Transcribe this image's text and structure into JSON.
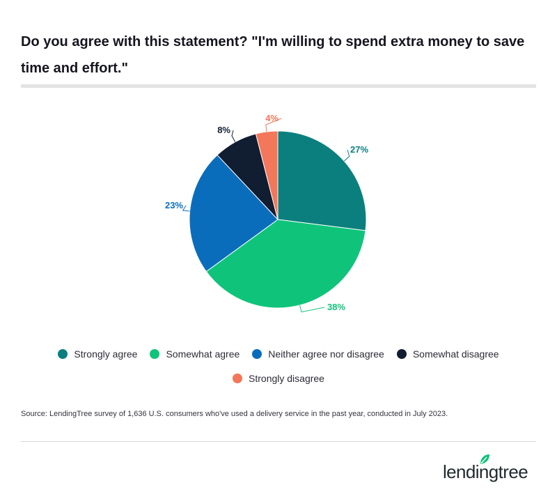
{
  "title": "Do you agree with this statement? \"I'm willing to spend extra money to save time and effort.\"",
  "chart_data": {
    "type": "pie",
    "slices": [
      {
        "label": "Strongly agree",
        "value": 27,
        "display": "27%",
        "color": "#0b7f7e"
      },
      {
        "label": "Somewhat agree",
        "value": 38,
        "display": "38%",
        "color": "#0fc47a"
      },
      {
        "label": "Neither agree nor disagree",
        "value": 23,
        "display": "23%",
        "color": "#0a6dbc"
      },
      {
        "label": "Somewhat disagree",
        "value": 8,
        "display": "8%",
        "color": "#111d30"
      },
      {
        "label": "Strongly disagree",
        "value": 4,
        "display": "4%",
        "color": "#f3775a"
      }
    ],
    "start_angle_deg": 0,
    "direction": "clockwise",
    "legend_position": "bottom"
  },
  "legend": {
    "row1": [
      {
        "label": "Strongly agree",
        "color": "#0b7f7e"
      },
      {
        "label": "Somewhat agree",
        "color": "#0fc47a"
      },
      {
        "label": "Neither agree nor disagree",
        "color": "#0a6dbc"
      },
      {
        "label": "Somewhat disagree",
        "color": "#111d30"
      }
    ],
    "row2": [
      {
        "label": "Strongly disagree",
        "color": "#f3775a"
      }
    ]
  },
  "source": "Source: LendingTree survey of 1,636 U.S. consumers who've used a delivery service in the past year, conducted in July 2023.",
  "logo": {
    "text": "lendingtree",
    "icon": "leaf-icon",
    "color": "#0fc47a"
  }
}
